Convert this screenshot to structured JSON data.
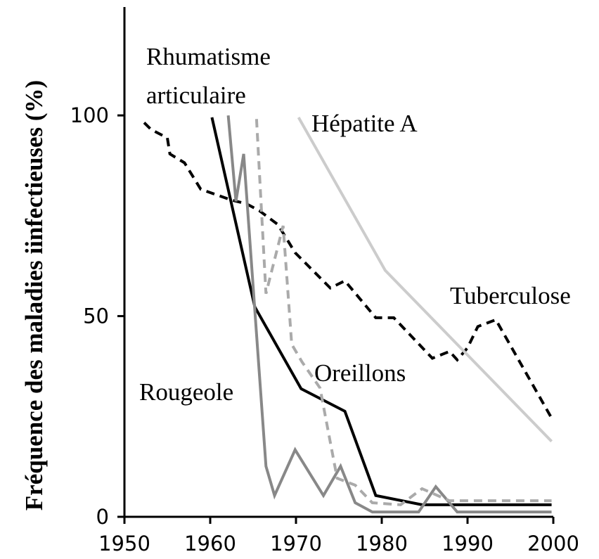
{
  "chart_data": {
    "type": "line",
    "ylabel": "Fréquence des maladies iinfectieuses (%)",
    "xlim": [
      1950,
      2000
    ],
    "xticks": [
      1950,
      1960,
      1970,
      1980,
      1990,
      2000
    ],
    "ylim": [
      0,
      127
    ],
    "yticks": [
      0,
      50,
      100
    ],
    "series": [
      {
        "name": "Tuberculose",
        "color": "#000000",
        "dashed": true,
        "x": [
          1952.3,
          1953.1,
          1955,
          1955.3,
          1957,
          1958.9,
          1962.5,
          1964.2,
          1965.7,
          1967.9,
          1969.9,
          1974,
          1975.7,
          1979.3,
          1981.4,
          1985.9,
          1987.9,
          1988.8,
          1990,
          1991.2,
          1993.3,
          1999.8
        ],
        "values": [
          98.2,
          96.5,
          94.4,
          90.4,
          88.2,
          81.6,
          78.9,
          78,
          76.3,
          72.8,
          65.8,
          57,
          58.8,
          49.6,
          49.6,
          39.5,
          41.2,
          39.1,
          42.1,
          47.4,
          49.1,
          24.6
        ]
      },
      {
        "name": "Hépatite A",
        "color": "#cccccc",
        "dashed": false,
        "x": [
          1970.3,
          1980.4,
          1999.8
        ],
        "values": [
          99.5,
          61.4,
          18.8
        ]
      },
      {
        "name": "Rhumatisme articulaire",
        "color": "#000000",
        "dashed": false,
        "x": [
          1960.2,
          1965.2,
          1970.6,
          1975.7,
          1979.3,
          1984.7,
          1999.8
        ],
        "values": [
          99.5,
          52.3,
          31.9,
          26.3,
          5.3,
          3,
          3
        ]
      },
      {
        "name": "Rougeole",
        "color": "#888888",
        "dashed": false,
        "x": [
          1962.1,
          1963,
          1963.9,
          1966.5,
          1967.5,
          1969.9,
          1973.2,
          1975.2,
          1976.9,
          1978.9,
          1984.3,
          1986.3,
          1988.8,
          1999.8
        ],
        "values": [
          100,
          78.6,
          90.4,
          12.6,
          5.3,
          16.7,
          5.3,
          12.6,
          3.5,
          1.2,
          1.2,
          7.5,
          1.2,
          1.2
        ]
      },
      {
        "name": "Oreillons",
        "color": "#aaaaaa",
        "dashed": true,
        "x": [
          1965.4,
          1966.5,
          1968.5,
          1969.5,
          1970.7,
          1972.8,
          1974.8,
          1976.9,
          1978.9,
          1982.2,
          1984.7,
          1987.9,
          1999.8
        ],
        "values": [
          99.1,
          55.6,
          72.5,
          43,
          38.6,
          32.1,
          9.6,
          7.9,
          3.5,
          3,
          7,
          4,
          4
        ]
      }
    ]
  }
}
